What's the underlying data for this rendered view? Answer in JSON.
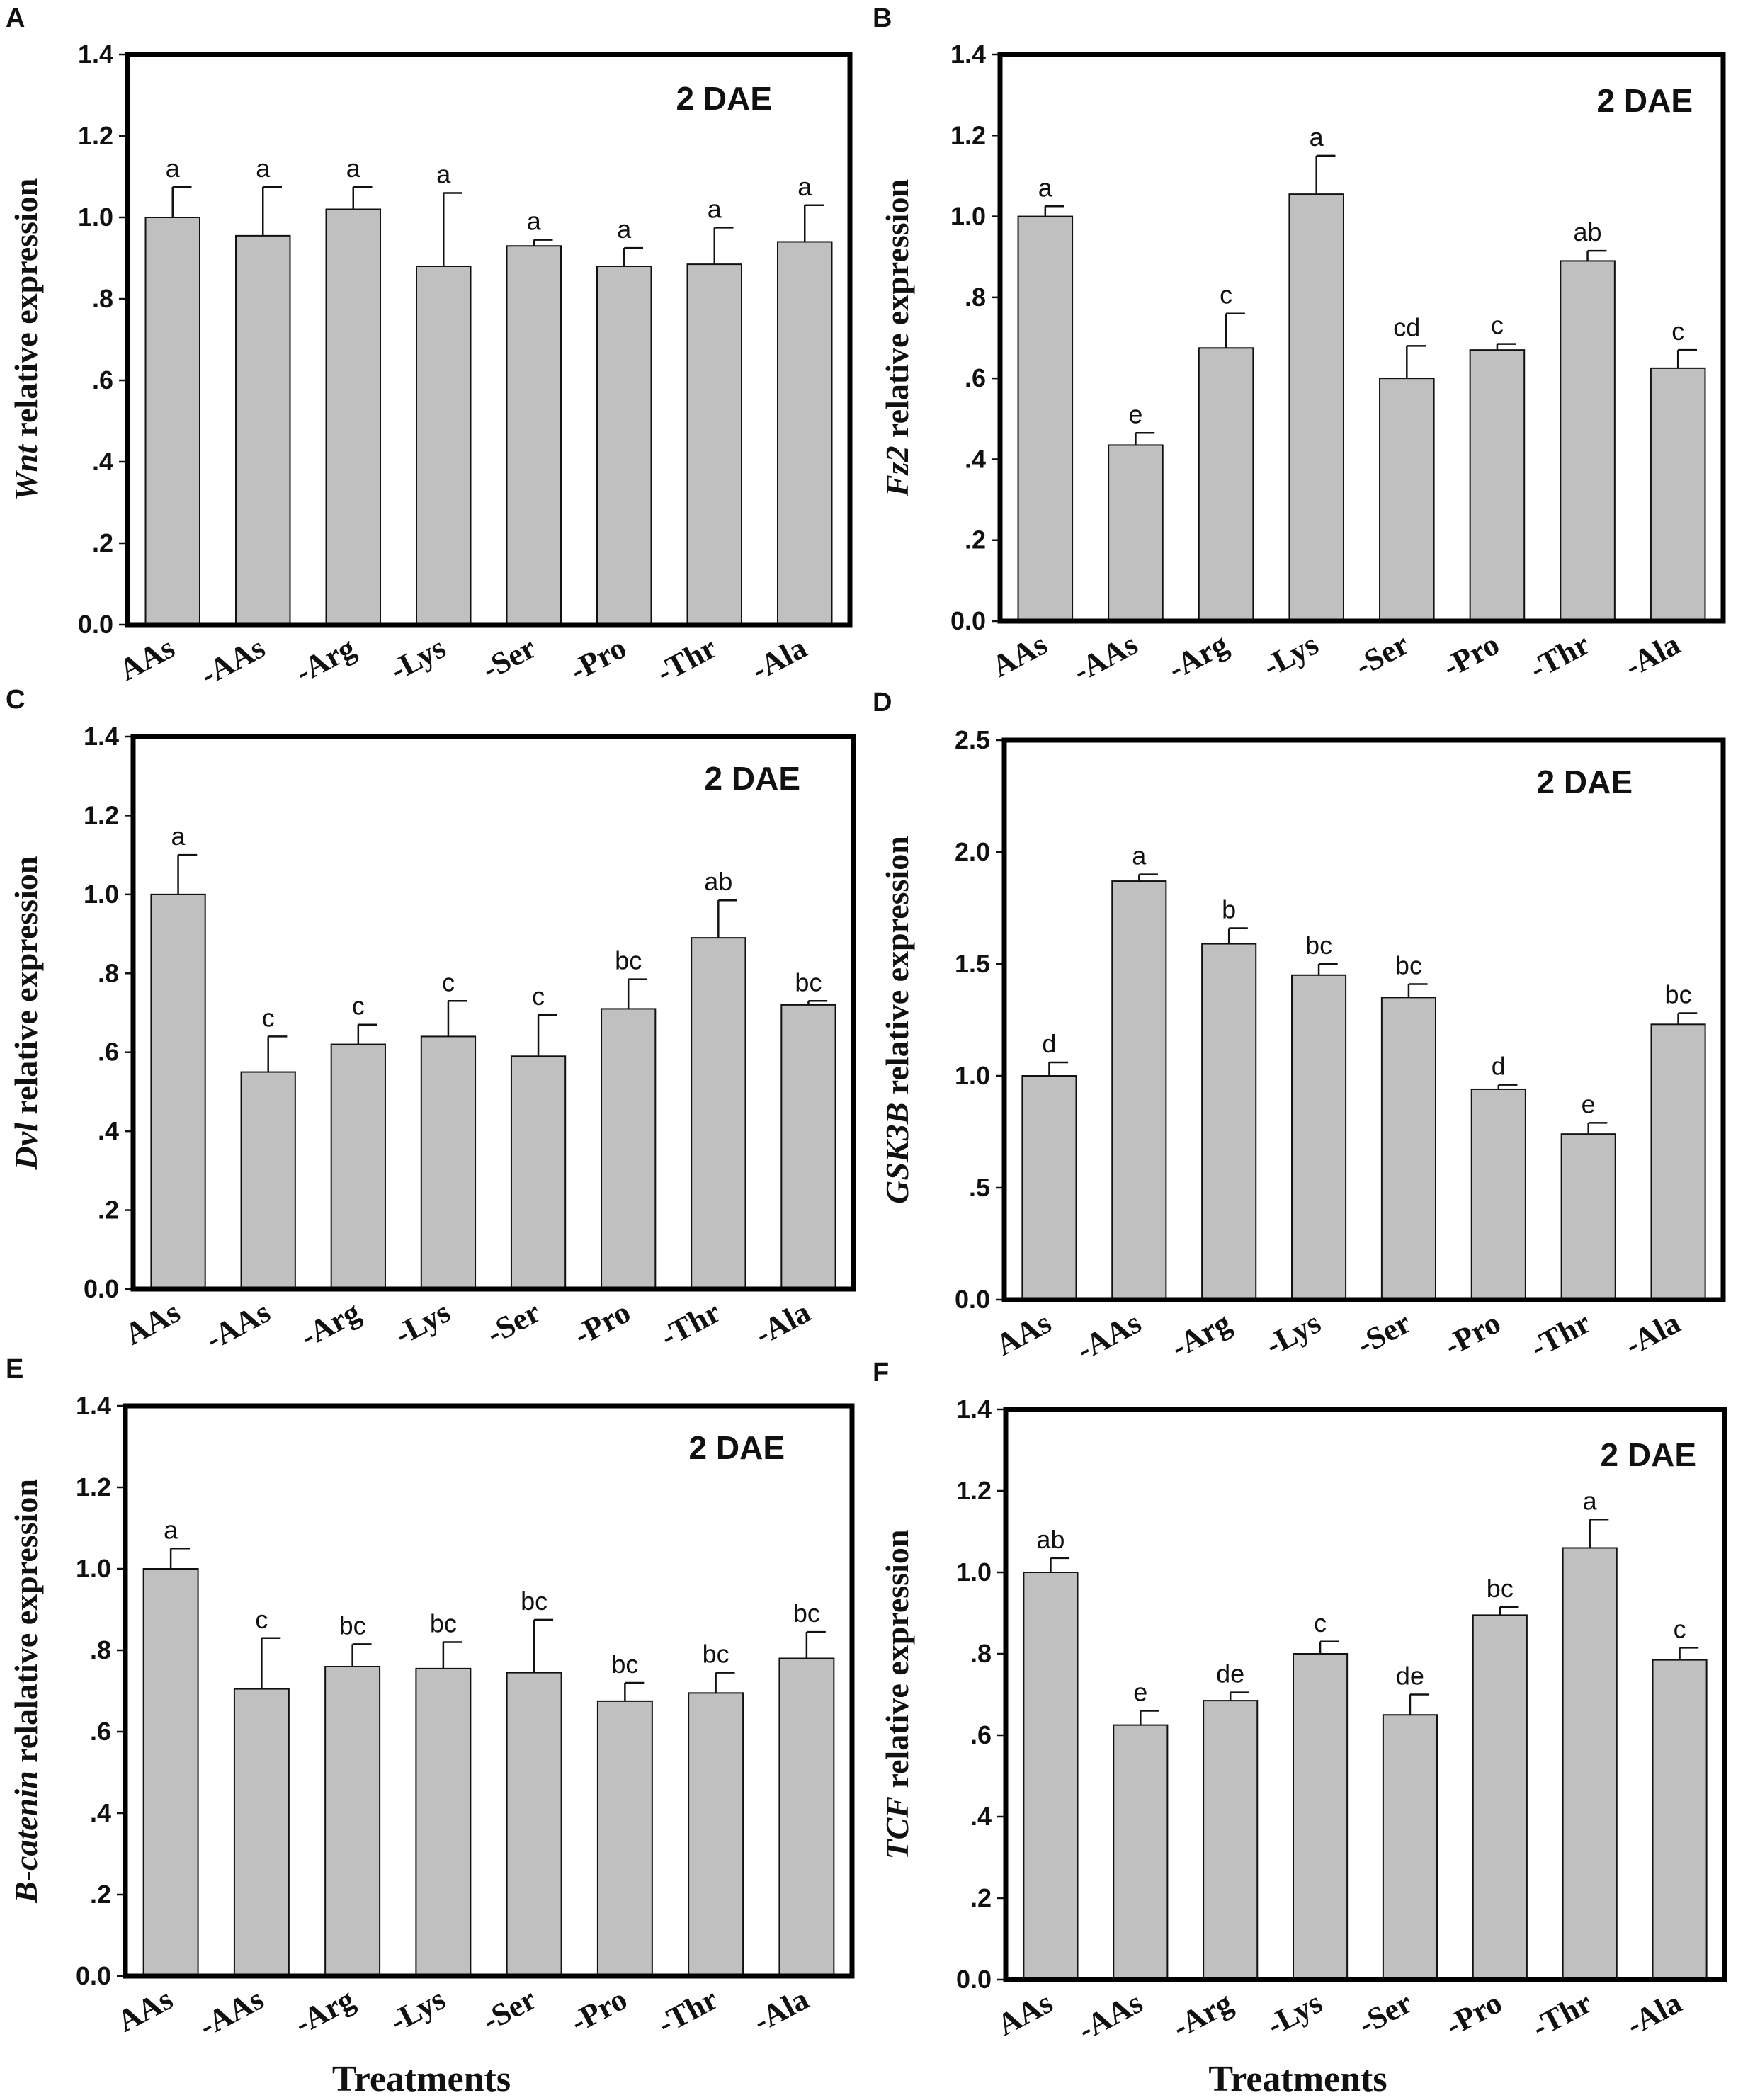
{
  "chart_data": [
    {
      "panel": "A",
      "type": "bar",
      "gene": "Wnt",
      "ylabel_suffix": " relative expression",
      "annotation": "2 DAE",
      "categories": [
        "AAs",
        "-AAs",
        "-Arg",
        "-Lys",
        "-Ser",
        "-Pro",
        "-Thr",
        "-Ala"
      ],
      "values": [
        1.0,
        0.955,
        1.02,
        0.88,
        0.93,
        0.88,
        0.885,
        0.94
      ],
      "errors": [
        0.075,
        0.12,
        0.055,
        0.18,
        0.015,
        0.045,
        0.09,
        0.09
      ],
      "significance": [
        "a",
        "a",
        "a",
        "a",
        "a",
        "a",
        "a",
        "a"
      ],
      "ylim": [
        0,
        1.4
      ],
      "yticks": [
        0,
        0.2,
        0.4,
        0.6,
        0.8,
        1.0,
        1.2,
        1.4
      ],
      "ytick_labels": [
        "0.0",
        ".2",
        ".4",
        ".6",
        ".8",
        "1.0",
        "1.2",
        "1.4"
      ],
      "xlabel": ""
    },
    {
      "panel": "B",
      "type": "bar",
      "gene": "Fz2",
      "ylabel_suffix": " relative expression",
      "annotation": "2 DAE",
      "categories": [
        "AAs",
        "-AAs",
        "-Arg",
        "-Lys",
        "-Ser",
        "-Pro",
        "-Thr",
        "-Ala"
      ],
      "values": [
        1.0,
        0.435,
        0.675,
        1.055,
        0.6,
        0.67,
        0.89,
        0.625
      ],
      "errors": [
        0.025,
        0.03,
        0.085,
        0.095,
        0.08,
        0.015,
        0.025,
        0.045
      ],
      "significance": [
        "a",
        "e",
        "c",
        "a",
        "cd",
        "c",
        "ab",
        "c"
      ],
      "ylim": [
        0,
        1.4
      ],
      "yticks": [
        0,
        0.2,
        0.4,
        0.6,
        0.8,
        1.0,
        1.2,
        1.4
      ],
      "ytick_labels": [
        "0.0",
        ".2",
        ".4",
        ".6",
        ".8",
        "1.0",
        "1.2",
        "1.4"
      ],
      "xlabel": ""
    },
    {
      "panel": "C",
      "type": "bar",
      "gene": "Dvl",
      "ylabel_suffix": " relative expression",
      "annotation": "2 DAE",
      "categories": [
        "AAs",
        "-AAs",
        "-Arg",
        "-Lys",
        "-Ser",
        "-Pro",
        "-Thr",
        "-Ala"
      ],
      "values": [
        1.0,
        0.55,
        0.62,
        0.64,
        0.59,
        0.71,
        0.89,
        0.72
      ],
      "errors": [
        0.1,
        0.09,
        0.05,
        0.09,
        0.105,
        0.075,
        0.095,
        0.01
      ],
      "significance": [
        "a",
        "c",
        "c",
        "c",
        "c",
        "bc",
        "ab",
        "bc"
      ],
      "ylim": [
        0,
        1.4
      ],
      "yticks": [
        0,
        0.2,
        0.4,
        0.6,
        0.8,
        1.0,
        1.2,
        1.4
      ],
      "ytick_labels": [
        "0.0",
        ".2",
        ".4",
        ".6",
        ".8",
        "1.0",
        "1.2",
        "1.4"
      ],
      "xlabel": ""
    },
    {
      "panel": "D",
      "type": "bar",
      "gene": "GSK3B",
      "ylabel_suffix": " relative expression",
      "annotation": "2 DAE",
      "categories": [
        "AAs",
        "-AAs",
        "-Arg",
        "-Lys",
        "-Ser",
        "-Pro",
        "-Thr",
        "-Ala"
      ],
      "values": [
        1.0,
        1.87,
        1.59,
        1.45,
        1.35,
        0.94,
        0.74,
        1.23
      ],
      "errors": [
        0.06,
        0.03,
        0.07,
        0.05,
        0.06,
        0.02,
        0.05,
        0.05
      ],
      "significance": [
        "d",
        "a",
        "b",
        "bc",
        "bc",
        "d",
        "e",
        "bc"
      ],
      "ylim": [
        0,
        2.5
      ],
      "yticks": [
        0,
        0.5,
        1.0,
        1.5,
        2.0,
        2.5
      ],
      "ytick_labels": [
        "0.0",
        ".5",
        "1.0",
        "1.5",
        "2.0",
        "2.5"
      ],
      "xlabel": ""
    },
    {
      "panel": "E",
      "type": "bar",
      "gene": "B-catenin",
      "ylabel_suffix": " relalative expression",
      "annotation": "2 DAE",
      "categories": [
        "AAs",
        "-AAs",
        "-Arg",
        "-Lys",
        "-Ser",
        "-Pro",
        "-Thr",
        "-Ala"
      ],
      "values": [
        1.0,
        0.705,
        0.76,
        0.755,
        0.745,
        0.675,
        0.695,
        0.78
      ],
      "errors": [
        0.05,
        0.125,
        0.055,
        0.065,
        0.13,
        0.045,
        0.05,
        0.065
      ],
      "significance": [
        "a",
        "c",
        "bc",
        "bc",
        "bc",
        "bc",
        "bc",
        "bc"
      ],
      "ylim": [
        0,
        1.4
      ],
      "yticks": [
        0,
        0.2,
        0.4,
        0.6,
        0.8,
        1.0,
        1.2,
        1.4
      ],
      "ytick_labels": [
        "0.0",
        ".2",
        ".4",
        ".6",
        ".8",
        "1.0",
        "1.2",
        "1.4"
      ],
      "xlabel": "Treatments"
    },
    {
      "panel": "F",
      "type": "bar",
      "gene": "TCF",
      "ylabel_suffix": " relative expression",
      "annotation": "2 DAE",
      "categories": [
        "AAs",
        "-AAs",
        "-Arg",
        "-Lys",
        "-Ser",
        "-Pro",
        "-Thr",
        "-Ala"
      ],
      "values": [
        1.0,
        0.625,
        0.685,
        0.8,
        0.65,
        0.895,
        1.06,
        0.785
      ],
      "errors": [
        0.035,
        0.035,
        0.02,
        0.03,
        0.05,
        0.02,
        0.07,
        0.03
      ],
      "significance": [
        "ab",
        "e",
        "de",
        "c",
        "de",
        "bc",
        "a",
        "c"
      ],
      "ylim": [
        0,
        1.4
      ],
      "yticks": [
        0,
        0.2,
        0.4,
        0.6,
        0.8,
        1.0,
        1.2,
        1.4
      ],
      "ytick_labels": [
        "0.0",
        ".2",
        ".4",
        ".6",
        ".8",
        "1.0",
        "1.2",
        "1.4"
      ],
      "xlabel": "Treatments"
    }
  ]
}
